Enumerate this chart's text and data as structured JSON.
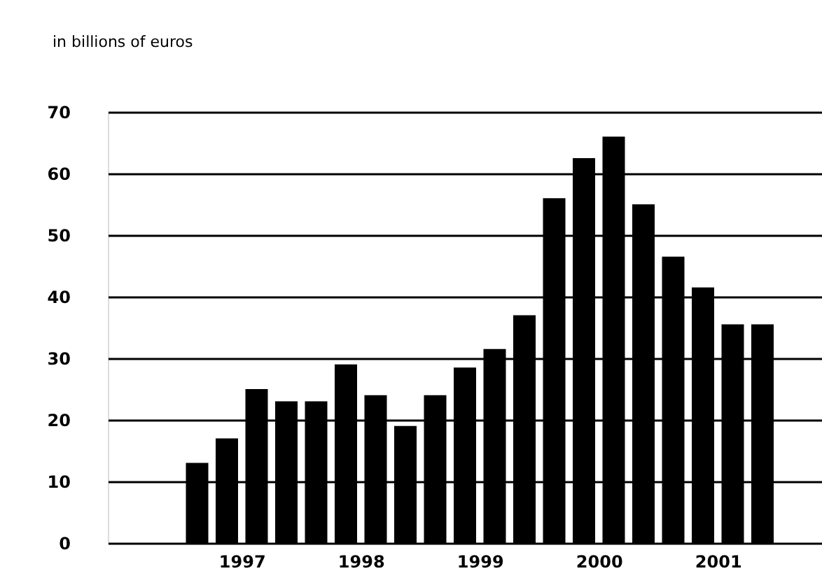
{
  "chart_data": {
    "type": "bar",
    "ylabel": "in billions of euros",
    "x": [
      1996.625,
      1996.875,
      1997.125,
      1997.375,
      1997.625,
      1997.875,
      1998.125,
      1998.375,
      1998.625,
      1998.875,
      1999.125,
      1999.375,
      1999.625,
      1999.875,
      2000.125,
      2000.375,
      2000.625,
      2000.875,
      2001.125,
      2001.375
    ],
    "values": [
      13,
      17,
      25,
      23,
      23,
      29,
      24,
      19,
      24,
      28.5,
      31.5,
      37,
      56,
      62.5,
      66,
      55,
      46.5,
      41.5,
      35.5,
      35.5
    ],
    "color": "#000000",
    "xlim": [
      1995.875,
      2001.875
    ],
    "xticks": [
      1997,
      1998,
      1999,
      2000,
      2001
    ],
    "ylim": [
      0,
      70
    ],
    "yticks": [
      0,
      10,
      20,
      30,
      40,
      50,
      60,
      70
    ],
    "grid": "y"
  }
}
